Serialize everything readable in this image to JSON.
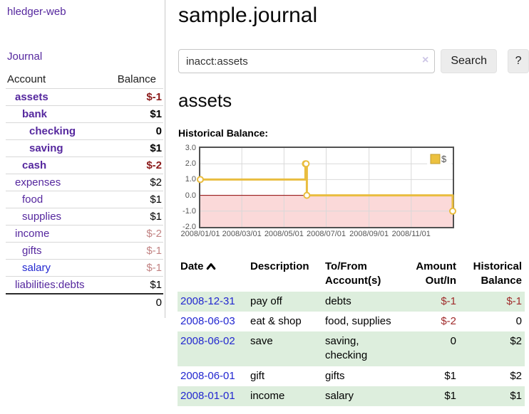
{
  "app": {
    "title": "hledger-web",
    "nav_journal": "Journal"
  },
  "colors": {
    "link_purple": "#55279e",
    "link_blue": "#2227d0",
    "negative_dark": "#8b1a1a",
    "negative_light": "#c28383",
    "negative_table": "#a02b2b",
    "row_stripe_green": "#ddeedd",
    "sidebar_divider": "#c9c9c9"
  },
  "sidebar": {
    "accounts_table": {
      "headers": {
        "account": "Account",
        "balance": "Balance"
      },
      "rows": [
        {
          "name": "assets",
          "depth": 1,
          "bold": true,
          "balance": "$-1",
          "balance_style": "neg"
        },
        {
          "name": "bank",
          "depth": 2,
          "bold": true,
          "balance": "$1",
          "balance_style": "pos"
        },
        {
          "name": "checking",
          "depth": 3,
          "bold": true,
          "balance": "0",
          "balance_style": "pos"
        },
        {
          "name": "saving",
          "depth": 3,
          "bold": true,
          "balance": "$1",
          "balance_style": "pos"
        },
        {
          "name": "cash",
          "depth": 2,
          "bold": true,
          "balance": "$-2",
          "balance_style": "neg"
        },
        {
          "name": "expenses",
          "depth": 1,
          "bold": false,
          "balance": "$2",
          "balance_style": "pos"
        },
        {
          "name": "food",
          "depth": 2,
          "bold": false,
          "balance": "$1",
          "balance_style": "pos"
        },
        {
          "name": "supplies",
          "depth": 2,
          "bold": false,
          "balance": "$1",
          "balance_style": "pos"
        },
        {
          "name": "income",
          "depth": 1,
          "bold": false,
          "balance": "$-2",
          "balance_style": "neg-light"
        },
        {
          "name": "gifts",
          "depth": 2,
          "bold": false,
          "balance": "$-1",
          "balance_style": "neg-light"
        },
        {
          "name": "salary",
          "depth": 2,
          "bold": false,
          "balance": "$-1",
          "balance_style": "neg-light",
          "link_color": "blue"
        },
        {
          "name": "liabilities:debts",
          "depth": 1,
          "bold": false,
          "balance": "$1",
          "balance_style": "pos"
        }
      ],
      "total": "0"
    }
  },
  "header": {
    "title": "sample.journal"
  },
  "search": {
    "query": "inacct:assets",
    "clear_icon": "×",
    "button": "Search",
    "help_button": "?"
  },
  "account_page": {
    "heading": "assets",
    "chart_label": "Historical Balance:"
  },
  "chart_data": {
    "type": "line",
    "mode": "step-after",
    "title": "Historical Balance",
    "series": [
      {
        "name": "$",
        "color": "#e9bd3f",
        "points": [
          [
            "2008-01-01",
            1
          ],
          [
            "2008-06-01",
            2
          ],
          [
            "2008-06-02",
            2
          ],
          [
            "2008-06-03",
            0
          ],
          [
            "2008-12-31",
            -1
          ]
        ]
      }
    ],
    "ylim": [
      -2,
      3
    ],
    "yticks": [
      "3.0",
      "2.0",
      "1.0",
      "0.0",
      "-1.0",
      "-2.0"
    ],
    "xticks": [
      "2008/01/01",
      "2008/03/01",
      "2008/05/01",
      "2008/07/01",
      "2008/09/01",
      "2008/11/01"
    ],
    "xrange": [
      "2008-01-01",
      "2008-12-31"
    ],
    "grid": true,
    "legend_position": "top-right",
    "legend_fill": "#ecc13f",
    "legend_border": "#c09c2c",
    "negative_region_color": "#fbd9d9",
    "zero_line_color": "#8b0000",
    "grid_color": "#d9d9d9",
    "frame_color": "#515151",
    "axis_text_color": "#545454"
  },
  "transactions": {
    "headers": {
      "date": "Date",
      "description": "Description",
      "accounts": "To/From Account(s)",
      "amount": "Amount Out/In",
      "balance": "Historical Balance"
    },
    "rows": [
      {
        "date": "2008-12-31",
        "description": "pay off",
        "accounts": "debts",
        "amount": "$-1",
        "amount_negative": true,
        "balance": "$-1",
        "balance_negative": true
      },
      {
        "date": "2008-06-03",
        "description": "eat & shop",
        "accounts": "food, supplies",
        "amount": "$-2",
        "amount_negative": true,
        "balance": "0",
        "balance_negative": false
      },
      {
        "date": "2008-06-02",
        "description": "save",
        "accounts": "saving, checking",
        "amount": "0",
        "amount_negative": false,
        "balance": "$2",
        "balance_negative": false
      },
      {
        "date": "2008-06-01",
        "description": "gift",
        "accounts": "gifts",
        "amount": "$1",
        "amount_negative": false,
        "balance": "$2",
        "balance_negative": false
      },
      {
        "date": "2008-01-01",
        "description": "income",
        "accounts": "salary",
        "amount": "$1",
        "amount_negative": false,
        "balance": "$1",
        "balance_negative": false
      }
    ]
  }
}
